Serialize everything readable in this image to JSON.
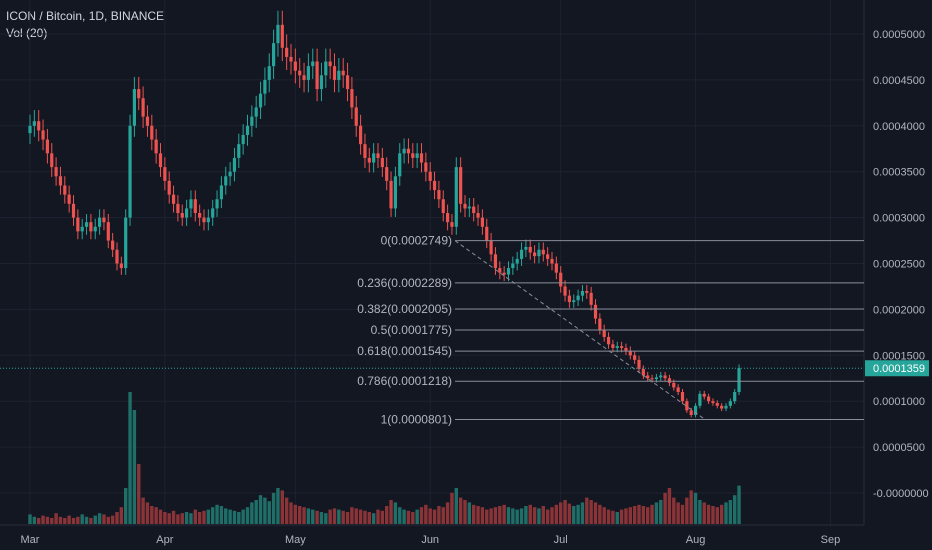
{
  "header": {
    "symbol_line": "ICON / Bitcoin, 1D, BINANCE",
    "indicator": "Vol (20)"
  },
  "colors": {
    "background": "#131722",
    "grid": "#1e2230",
    "up": "#26a69a",
    "down": "#ef5350",
    "up_volume": "#1f6f68",
    "down_volume": "#8a3438",
    "fib_line": "#8a8e99",
    "fib_text": "#b2b5be",
    "price_line": "#26a69a"
  },
  "chart_data": {
    "type": "candlestick",
    "x_axis_labels": [
      "Mar",
      "Apr",
      "May",
      "Jun",
      "Jul",
      "Aug",
      "Sep"
    ],
    "y_axis_labels": [
      "0.0005000",
      "0.0004500",
      "0.0004000",
      "0.0003500",
      "0.0003000",
      "0.0002500",
      "0.0002000",
      "0.0001500",
      "0.0001000",
      "0.0000500",
      "-0.0000000"
    ],
    "y_range": [
      0.0,
      0.00054
    ],
    "current_price": {
      "label": "0.0001359",
      "value": 0.0001359
    },
    "fibonacci": {
      "levels": [
        {
          "label": "0(0.0002749)",
          "value": 0.0002749
        },
        {
          "label": "0.236(0.0002289)",
          "value": 0.0002289
        },
        {
          "label": "0.382(0.0002005)",
          "value": 0.0002005
        },
        {
          "label": "0.5(0.0001775)",
          "value": 0.0001775
        },
        {
          "label": "0.618(0.0001545)",
          "value": 0.0001545
        },
        {
          "label": "0.786(0.0001218)",
          "value": 0.0001218
        },
        {
          "label": "1(0.0000801)",
          "value": 8.01e-05
        }
      ]
    },
    "days_per_month_label": [
      0,
      31,
      61,
      92,
      122,
      153,
      184
    ],
    "closes": [
      0.0004,
      0.000405,
      0.000395,
      0.000385,
      0.00037,
      0.000355,
      0.000345,
      0.000335,
      0.000325,
      0.000315,
      0.0003,
      0.000285,
      0.00029,
      0.000295,
      0.000285,
      0.00029,
      0.0003,
      0.000295,
      0.000275,
      0.000265,
      0.00025,
      0.000245,
      0.0003,
      0.0004,
      0.00044,
      0.00043,
      0.00041,
      0.0004,
      0.000385,
      0.00037,
      0.000355,
      0.00034,
      0.000325,
      0.000315,
      0.000305,
      0.0003,
      0.00031,
      0.00032,
      0.000305,
      0.0003,
      0.000295,
      0.0003,
      0.00031,
      0.00032,
      0.000335,
      0.000345,
      0.00035,
      0.000365,
      0.00038,
      0.00039,
      0.0004,
      0.00041,
      0.00042,
      0.000435,
      0.00045,
      0.000465,
      0.00049,
      0.00051,
      0.000485,
      0.000475,
      0.00047,
      0.00046,
      0.000455,
      0.00045,
      0.000465,
      0.00047,
      0.00044,
      0.000455,
      0.00047,
      0.000465,
      0.00045,
      0.00046,
      0.000455,
      0.00044,
      0.00042,
      0.0004,
      0.00038,
      0.000365,
      0.00036,
      0.00037,
      0.000365,
      0.000355,
      0.00034,
      0.00031,
      0.000345,
      0.00037,
      0.000375,
      0.00037,
      0.000365,
      0.00037,
      0.00036,
      0.00035,
      0.00034,
      0.00033,
      0.00032,
      0.000305,
      0.000295,
      0.00029,
      0.000355,
      0.000315,
      0.00031,
      0.000312,
      0.000305,
      0.0003,
      0.00029,
      0.000275,
      0.00026,
      0.000245,
      0.00024,
      0.000238,
      0.000245,
      0.00025,
      0.000255,
      0.000265,
      0.000268,
      0.000262,
      0.000258,
      0.000265,
      0.00026,
      0.000255,
      0.00025,
      0.00024,
      0.000225,
      0.000215,
      0.000208,
      0.00021,
      0.000215,
      0.00022,
      0.000218,
      0.000205,
      0.00019,
      0.000178,
      0.00017,
      0.000162,
      0.000158,
      0.00016,
      0.000158,
      0.000155,
      0.00015,
      0.000145,
      0.000135,
      0.000128,
      0.000125,
      0.000124,
      0.000126,
      0.000128,
      0.000125,
      0.00012,
      0.000115,
      0.00011,
      0.0001,
      9e-05,
      8.5e-05,
      9.5e-05,
      0.000108,
      0.000105,
      0.0001,
      9.8e-05,
      9.5e-05,
      9.2e-05,
      9.5e-05,
      0.0001,
      0.00011,
      0.000136
    ],
    "volumes": [
      8,
      6,
      5,
      7,
      6,
      5,
      9,
      6,
      5,
      7,
      5,
      6,
      8,
      6,
      5,
      7,
      9,
      8,
      6,
      7,
      10,
      14,
      30,
      110,
      95,
      50,
      22,
      18,
      15,
      14,
      12,
      10,
      9,
      11,
      8,
      9,
      10,
      9,
      12,
      10,
      11,
      12,
      14,
      16,
      15,
      13,
      12,
      11,
      10,
      12,
      14,
      18,
      20,
      24,
      22,
      19,
      26,
      30,
      28,
      22,
      18,
      16,
      15,
      14,
      13,
      12,
      11,
      10,
      9,
      12,
      13,
      12,
      11,
      10,
      14,
      13,
      12,
      11,
      10,
      9,
      12,
      11,
      15,
      20,
      18,
      14,
      12,
      11,
      10,
      12,
      14,
      16,
      13,
      12,
      15,
      14,
      18,
      26,
      30,
      22,
      20,
      18,
      16,
      15,
      14,
      12,
      13,
      14,
      15,
      16,
      14,
      13,
      12,
      13,
      15,
      16,
      14,
      13,
      15,
      12,
      14,
      16,
      18,
      20,
      17,
      15,
      16,
      18,
      22,
      20,
      18,
      16,
      14,
      12,
      11,
      10,
      12,
      13,
      14,
      15,
      16,
      15,
      14,
      16,
      18,
      20,
      26,
      30,
      22,
      18,
      16,
      22,
      28,
      26,
      20,
      18,
      16,
      15,
      14,
      16,
      18,
      20,
      24,
      32
    ]
  }
}
